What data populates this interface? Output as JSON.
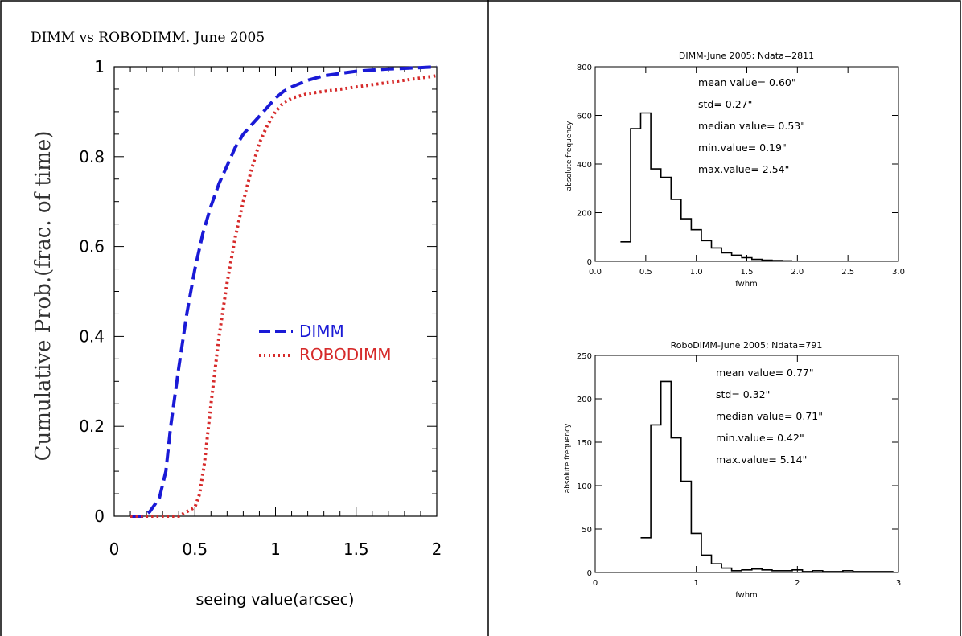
{
  "chart_data": [
    {
      "type": "line",
      "title": "DIMM vs ROBODIMM. June 2005",
      "xlabel": "seeing value(arcsec)",
      "ylabel": "Cumulative Prob.(frac. of time)",
      "xlim": [
        0,
        2
      ],
      "ylim": [
        0,
        1
      ],
      "xticks": [
        "0",
        "0.5",
        "1",
        "1.5",
        "2"
      ],
      "yticks": [
        "0",
        "0.2",
        "0.4",
        "0.6",
        "0.8",
        "1"
      ],
      "legend_position": "center-right",
      "series": [
        {
          "name": "DIMM",
          "color": "#1a1ad6",
          "style": "dashed",
          "x": [
            0.1,
            0.18,
            0.22,
            0.28,
            0.32,
            0.35,
            0.4,
            0.45,
            0.5,
            0.55,
            0.6,
            0.65,
            0.7,
            0.75,
            0.8,
            0.85,
            0.9,
            0.95,
            1.0,
            1.05,
            1.1,
            1.2,
            1.3,
            1.5,
            1.7,
            1.9,
            2.0
          ],
          "y": [
            0.0,
            0.0,
            0.01,
            0.04,
            0.1,
            0.2,
            0.33,
            0.45,
            0.55,
            0.63,
            0.69,
            0.74,
            0.78,
            0.82,
            0.85,
            0.87,
            0.89,
            0.91,
            0.93,
            0.945,
            0.955,
            0.97,
            0.98,
            0.99,
            0.995,
            0.998,
            1.0
          ]
        },
        {
          "name": "ROBODIMM",
          "color": "#d62a2a",
          "style": "dotted",
          "x": [
            0.1,
            0.3,
            0.4,
            0.45,
            0.5,
            0.53,
            0.56,
            0.6,
            0.65,
            0.7,
            0.75,
            0.8,
            0.85,
            0.9,
            0.95,
            1.0,
            1.05,
            1.1,
            1.2,
            1.4,
            1.6,
            1.8,
            2.0
          ],
          "y": [
            0.0,
            0.0,
            0.0,
            0.01,
            0.02,
            0.05,
            0.12,
            0.25,
            0.4,
            0.52,
            0.62,
            0.7,
            0.77,
            0.83,
            0.87,
            0.9,
            0.92,
            0.93,
            0.94,
            0.95,
            0.96,
            0.97,
            0.98
          ]
        }
      ]
    },
    {
      "type": "histogram",
      "title": "DIMM-June 2005; Ndata=2811",
      "xlabel": "fwhm",
      "ylabel": "absolute frequency",
      "xlim": [
        0,
        3
      ],
      "ylim": [
        0,
        800
      ],
      "xticks": [
        "0.0",
        "0.5",
        "1.0",
        "1.5",
        "2.0",
        "2.5",
        "3.0"
      ],
      "yticks": [
        "0",
        "200",
        "400",
        "600",
        "800"
      ],
      "bin_width": 0.1,
      "bin_starts": [
        0.25,
        0.35,
        0.45,
        0.55,
        0.65,
        0.75,
        0.85,
        0.95,
        1.05,
        1.15,
        1.25,
        1.35,
        1.45,
        1.55,
        1.65,
        1.75,
        1.85
      ],
      "values": [
        80,
        545,
        610,
        380,
        345,
        255,
        175,
        130,
        85,
        55,
        35,
        25,
        15,
        8,
        5,
        3,
        2
      ],
      "stats": [
        "mean value= 0.60\"",
        "std= 0.27\"",
        "median value= 0.53\"",
        "min.value= 0.19\"",
        "max.value= 2.54\""
      ]
    },
    {
      "type": "histogram",
      "title": "RoboDIMM-June 2005; Ndata=791",
      "xlabel": "fwhm",
      "ylabel": "absolute frequency",
      "xlim": [
        0,
        3
      ],
      "ylim": [
        0,
        250
      ],
      "xticks": [
        "0",
        "1",
        "2",
        "3"
      ],
      "yticks": [
        "0",
        "50",
        "100",
        "150",
        "200",
        "250"
      ],
      "bin_width": 0.1,
      "bin_starts": [
        0.45,
        0.55,
        0.65,
        0.75,
        0.85,
        0.95,
        1.05,
        1.15,
        1.25,
        1.35,
        1.45,
        1.55,
        1.65,
        1.75,
        1.85,
        1.95,
        2.05,
        2.15,
        2.25,
        2.35,
        2.45,
        2.55,
        2.65,
        2.75,
        2.85
      ],
      "values": [
        40,
        170,
        220,
        155,
        105,
        45,
        20,
        10,
        5,
        2,
        3,
        4,
        3,
        2,
        2,
        3,
        1,
        2,
        1,
        1,
        2,
        1,
        1,
        1,
        1
      ],
      "stats": [
        "mean value= 0.77\"",
        "std= 0.32\"",
        "median value= 0.71\"",
        "min.value= 0.42\"",
        "max.value= 5.14\""
      ]
    }
  ]
}
